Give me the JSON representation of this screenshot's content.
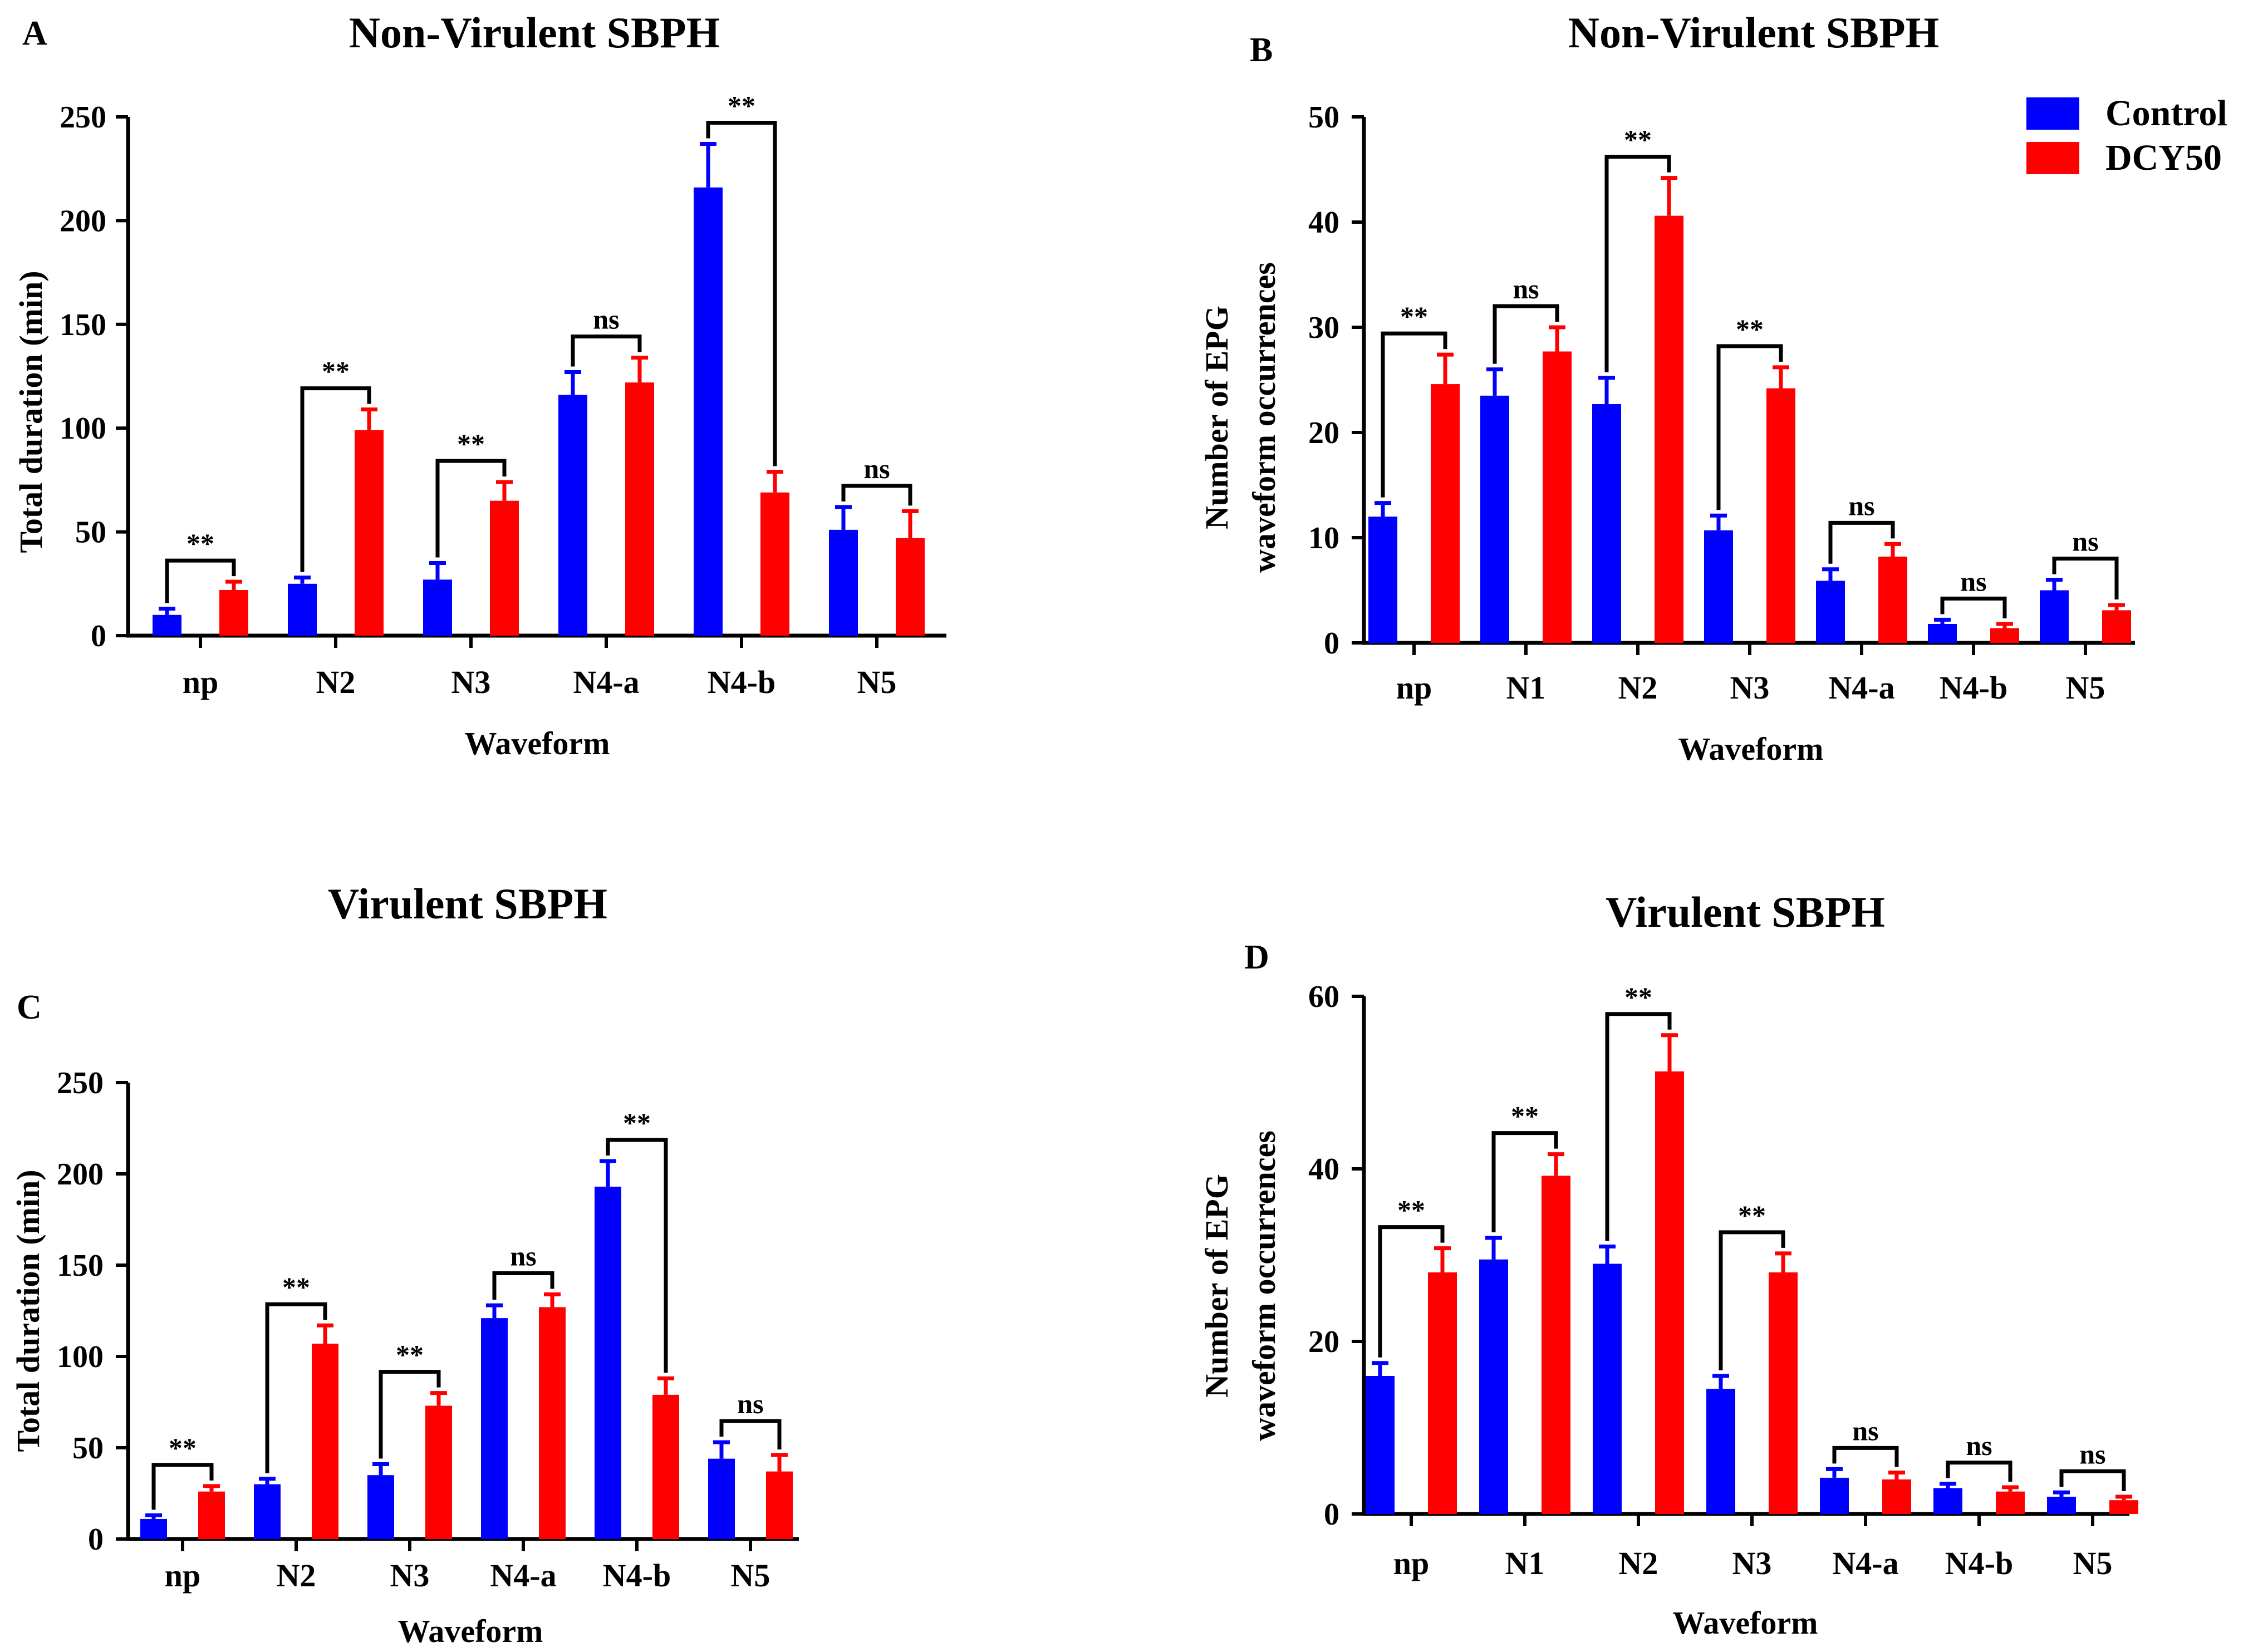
{
  "colors": {
    "control": "#0000ff",
    "treatment": "#ff0000",
    "axis": "#000000"
  },
  "legend": {
    "items": [
      "Control",
      "DCY50"
    ]
  },
  "chart_data": [
    {
      "panel": "A",
      "type": "bar",
      "title": "Non-Virulent SBPH",
      "xlabel": "Waveform",
      "ylabel": "Total duration (min)",
      "ylim": [
        0,
        250
      ],
      "yticks": [
        0,
        50,
        100,
        150,
        200,
        250
      ],
      "categories": [
        "np",
        "N2",
        "N3",
        "N4-a",
        "N4-b",
        "N5"
      ],
      "series": [
        {
          "name": "Control",
          "values": [
            10,
            25,
            27,
            116,
            216,
            51
          ],
          "errors": [
            3,
            3,
            8,
            11,
            21,
            11
          ]
        },
        {
          "name": "DCY50",
          "values": [
            22,
            99,
            65,
            122,
            69,
            47
          ],
          "errors": [
            4,
            10,
            9,
            12,
            10,
            13
          ]
        }
      ],
      "significance": [
        "**",
        "**",
        "**",
        "ns",
        "**",
        "ns"
      ]
    },
    {
      "panel": "B",
      "type": "bar",
      "title": "Non-Virulent SBPH",
      "xlabel": "Waveform",
      "ylabel": "Number of EPG waveform occurrences",
      "ylabel_lines": [
        "Number of EPG",
        "waveform occurrences"
      ],
      "ylim": [
        0,
        50
      ],
      "yticks": [
        0,
        10,
        20,
        30,
        40,
        50
      ],
      "categories": [
        "np",
        "N1",
        "N2",
        "N3",
        "N4-a",
        "N4-b",
        "N5"
      ],
      "series": [
        {
          "name": "Control",
          "values": [
            12,
            23.5,
            22.7,
            10.7,
            5.9,
            1.8,
            5
          ],
          "errors": [
            1.3,
            2.5,
            2.5,
            1.4,
            1.1,
            0.4,
            1
          ]
        },
        {
          "name": "DCY50",
          "values": [
            24.6,
            27.7,
            40.6,
            24.2,
            8.2,
            1.4,
            3.1
          ],
          "errors": [
            2.8,
            2.3,
            3.6,
            2,
            1.2,
            0.4,
            0.5
          ]
        }
      ],
      "significance": [
        "**",
        "ns",
        "**",
        "**",
        "ns",
        "ns",
        "ns"
      ]
    },
    {
      "panel": "C",
      "type": "bar",
      "title": "Virulent SBPH",
      "xlabel": "Waveform",
      "ylabel": "Total duration (min)",
      "ylim": [
        0,
        250
      ],
      "yticks": [
        0,
        50,
        100,
        150,
        200,
        250
      ],
      "categories": [
        "np",
        "N2",
        "N3",
        "N4-a",
        "N4-b",
        "N5"
      ],
      "series": [
        {
          "name": "Control",
          "values": [
            11,
            30,
            35,
            121,
            193,
            44
          ],
          "errors": [
            2,
            3,
            6,
            7,
            14,
            9
          ]
        },
        {
          "name": "DCY50",
          "values": [
            26,
            107,
            73,
            127,
            79,
            37
          ],
          "errors": [
            3,
            10,
            7,
            7,
            9,
            9
          ]
        }
      ],
      "significance": [
        "**",
        "**",
        "**",
        "ns",
        "**",
        "ns"
      ]
    },
    {
      "panel": "D",
      "type": "bar",
      "title": "Virulent SBPH",
      "xlabel": "Waveform",
      "ylabel": "Number of EPG waveform occurrences",
      "ylabel_lines": [
        "Number of EPG",
        "waveform occurrences"
      ],
      "ylim": [
        0,
        60
      ],
      "yticks": [
        0,
        20,
        40,
        60
      ],
      "categories": [
        "np",
        "N1",
        "N2",
        "N3",
        "N4-a",
        "N4-b",
        "N5"
      ],
      "series": [
        {
          "name": "Control",
          "values": [
            16,
            29.5,
            29,
            14.5,
            4.2,
            3,
            2
          ],
          "errors": [
            1.5,
            2.5,
            2,
            1.5,
            1,
            0.5,
            0.5
          ]
        },
        {
          "name": "DCY50",
          "values": [
            28,
            39.2,
            51.3,
            28,
            4,
            2.6,
            1.6
          ],
          "errors": [
            2.8,
            2.5,
            4.2,
            2.2,
            0.8,
            0.5,
            0.4
          ]
        }
      ],
      "significance": [
        "**",
        "**",
        "**",
        "**",
        "ns",
        "ns",
        "ns"
      ]
    }
  ]
}
